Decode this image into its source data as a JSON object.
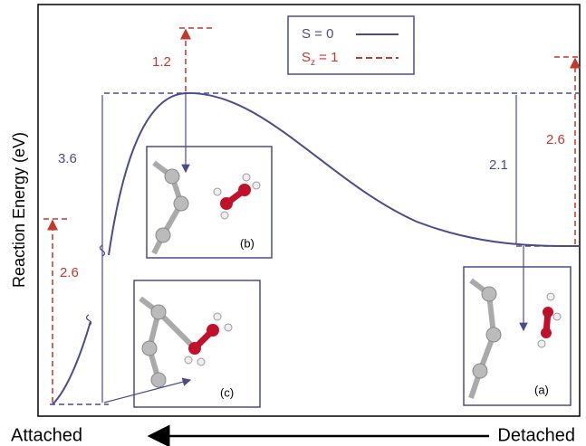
{
  "axis": {
    "y_label": "Reaction Energy  (eV)",
    "x_left": "Attached",
    "x_right": "Detached"
  },
  "legend": [
    {
      "label": "S = 0"
    },
    {
      "symbol": "S",
      "subscript": "z",
      "rest": " = 1"
    }
  ],
  "annotations": [
    "3.6",
    "1.2",
    "2.6",
    "2.1",
    "2.6"
  ],
  "insets": [
    "(b)",
    "(c)",
    "(a)"
  ]
}
